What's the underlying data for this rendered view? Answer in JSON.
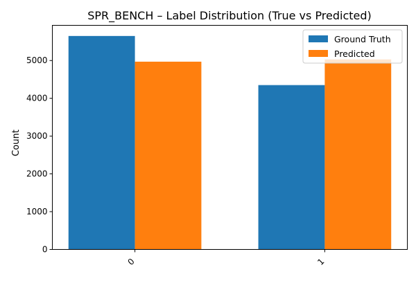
{
  "chart_data": {
    "type": "bar",
    "title": "SPR_BENCH – Label Distribution (True vs Predicted)",
    "xlabel": "",
    "ylabel": "Count",
    "categories": [
      "0",
      "1"
    ],
    "series": [
      {
        "name": "Ground Truth",
        "values": [
          5650,
          4350
        ],
        "color": "#1f77b4"
      },
      {
        "name": "Predicted",
        "values": [
          4970,
          5030
        ],
        "color": "#ff7f0e"
      }
    ],
    "yticks": [
      0,
      1000,
      2000,
      3000,
      4000,
      5000
    ],
    "ylim": [
      0,
      5932
    ],
    "grid": false,
    "legend_position": "top-right"
  }
}
